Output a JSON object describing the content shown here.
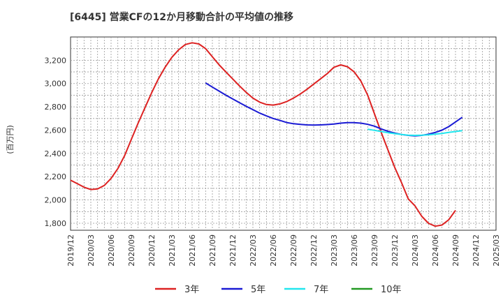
{
  "chart_data": {
    "type": "line",
    "title": "[6445]  営業CFの12か月移動合計の平均値の推移",
    "ylabel": "(百万円)",
    "xlabel": "",
    "ylim": [
      1740,
      3400
    ],
    "yticks": [
      1800,
      2000,
      2200,
      2400,
      2600,
      2800,
      3000,
      3200
    ],
    "ytick_labels": [
      "1,800",
      "2,000",
      "2,200",
      "2,400",
      "2,600",
      "2,800",
      "3,000",
      "3,200"
    ],
    "xlim": [
      "2019-12",
      "2025-03"
    ],
    "xtick_labels": [
      "2019/12",
      "2020/03",
      "2020/06",
      "2020/09",
      "2020/12",
      "2021/03",
      "2021/06",
      "2021/09",
      "2021/12",
      "2022/03",
      "2022/06",
      "2022/09",
      "2022/12",
      "2023/03",
      "2023/06",
      "2023/09",
      "2023/12",
      "2024/03",
      "2024/06",
      "2024/09",
      "2024/12",
      "2025/03"
    ],
    "grid": true,
    "legend_position": "bottom",
    "series": [
      {
        "name": "3年",
        "color": "#dd2222",
        "points": [
          [
            "2019-12",
            2170
          ],
          [
            "2020-01",
            2140
          ],
          [
            "2020-02",
            2110
          ],
          [
            "2020-03",
            2090
          ],
          [
            "2020-04",
            2095
          ],
          [
            "2020-05",
            2125
          ],
          [
            "2020-06",
            2185
          ],
          [
            "2020-07",
            2270
          ],
          [
            "2020-08",
            2380
          ],
          [
            "2020-09",
            2520
          ],
          [
            "2020-10",
            2660
          ],
          [
            "2020-11",
            2790
          ],
          [
            "2020-12",
            2920
          ],
          [
            "2021-01",
            3040
          ],
          [
            "2021-02",
            3140
          ],
          [
            "2021-03",
            3225
          ],
          [
            "2021-04",
            3290
          ],
          [
            "2021-05",
            3335
          ],
          [
            "2021-06",
            3350
          ],
          [
            "2021-07",
            3340
          ],
          [
            "2021-08",
            3300
          ],
          [
            "2021-09",
            3230
          ],
          [
            "2021-10",
            3160
          ],
          [
            "2021-11",
            3100
          ],
          [
            "2021-12",
            3040
          ],
          [
            "2022-01",
            2980
          ],
          [
            "2022-02",
            2925
          ],
          [
            "2022-03",
            2875
          ],
          [
            "2022-04",
            2840
          ],
          [
            "2022-05",
            2820
          ],
          [
            "2022-06",
            2815
          ],
          [
            "2022-07",
            2825
          ],
          [
            "2022-08",
            2845
          ],
          [
            "2022-09",
            2875
          ],
          [
            "2022-10",
            2910
          ],
          [
            "2022-11",
            2950
          ],
          [
            "2022-12",
            2995
          ],
          [
            "2023-01",
            3040
          ],
          [
            "2023-02",
            3085
          ],
          [
            "2023-03",
            3140
          ],
          [
            "2023-04",
            3160
          ],
          [
            "2023-05",
            3145
          ],
          [
            "2023-06",
            3100
          ],
          [
            "2023-07",
            3020
          ],
          [
            "2023-08",
            2900
          ],
          [
            "2023-09",
            2740
          ],
          [
            "2023-10",
            2580
          ],
          [
            "2023-11",
            2430
          ],
          [
            "2023-12",
            2280
          ],
          [
            "2024-01",
            2150
          ],
          [
            "2024-02",
            2010
          ],
          [
            "2024-03",
            1950
          ],
          [
            "2024-04",
            1860
          ],
          [
            "2024-05",
            1800
          ],
          [
            "2024-06",
            1775
          ],
          [
            "2024-07",
            1785
          ],
          [
            "2024-08",
            1830
          ],
          [
            "2024-09",
            1910
          ]
        ]
      },
      {
        "name": "5年",
        "color": "#1a1ad4",
        "points": [
          [
            "2021-08",
            3005
          ],
          [
            "2021-09",
            2970
          ],
          [
            "2021-10",
            2935
          ],
          [
            "2021-11",
            2900
          ],
          [
            "2021-12",
            2868
          ],
          [
            "2022-01",
            2836
          ],
          [
            "2022-02",
            2805
          ],
          [
            "2022-03",
            2776
          ],
          [
            "2022-04",
            2746
          ],
          [
            "2022-05",
            2722
          ],
          [
            "2022-06",
            2700
          ],
          [
            "2022-07",
            2683
          ],
          [
            "2022-08",
            2665
          ],
          [
            "2022-09",
            2655
          ],
          [
            "2022-10",
            2650
          ],
          [
            "2022-11",
            2645
          ],
          [
            "2022-12",
            2643
          ],
          [
            "2023-01",
            2645
          ],
          [
            "2023-02",
            2648
          ],
          [
            "2023-03",
            2652
          ],
          [
            "2023-04",
            2660
          ],
          [
            "2023-05",
            2664
          ],
          [
            "2023-06",
            2664
          ],
          [
            "2023-07",
            2660
          ],
          [
            "2023-08",
            2650
          ],
          [
            "2023-09",
            2634
          ],
          [
            "2023-10",
            2610
          ],
          [
            "2023-11",
            2590
          ],
          [
            "2023-12",
            2575
          ],
          [
            "2024-01",
            2563
          ],
          [
            "2024-02",
            2555
          ],
          [
            "2024-03",
            2550
          ],
          [
            "2024-04",
            2555
          ],
          [
            "2024-05",
            2565
          ],
          [
            "2024-06",
            2580
          ],
          [
            "2024-07",
            2600
          ],
          [
            "2024-08",
            2630
          ],
          [
            "2024-09",
            2670
          ],
          [
            "2024-10",
            2710
          ]
        ]
      },
      {
        "name": "7年",
        "color": "#22e6ee",
        "points": [
          [
            "2023-08",
            2608
          ],
          [
            "2023-09",
            2598
          ],
          [
            "2023-10",
            2588
          ],
          [
            "2023-11",
            2578
          ],
          [
            "2023-12",
            2570
          ],
          [
            "2024-01",
            2562
          ],
          [
            "2024-02",
            2557
          ],
          [
            "2024-03",
            2555
          ],
          [
            "2024-04",
            2556
          ],
          [
            "2024-05",
            2560
          ],
          [
            "2024-06",
            2565
          ],
          [
            "2024-07",
            2572
          ],
          [
            "2024-08",
            2580
          ],
          [
            "2024-09",
            2588
          ],
          [
            "2024-10",
            2595
          ]
        ]
      },
      {
        "name": "10年",
        "color": "#229922",
        "points": []
      }
    ]
  }
}
